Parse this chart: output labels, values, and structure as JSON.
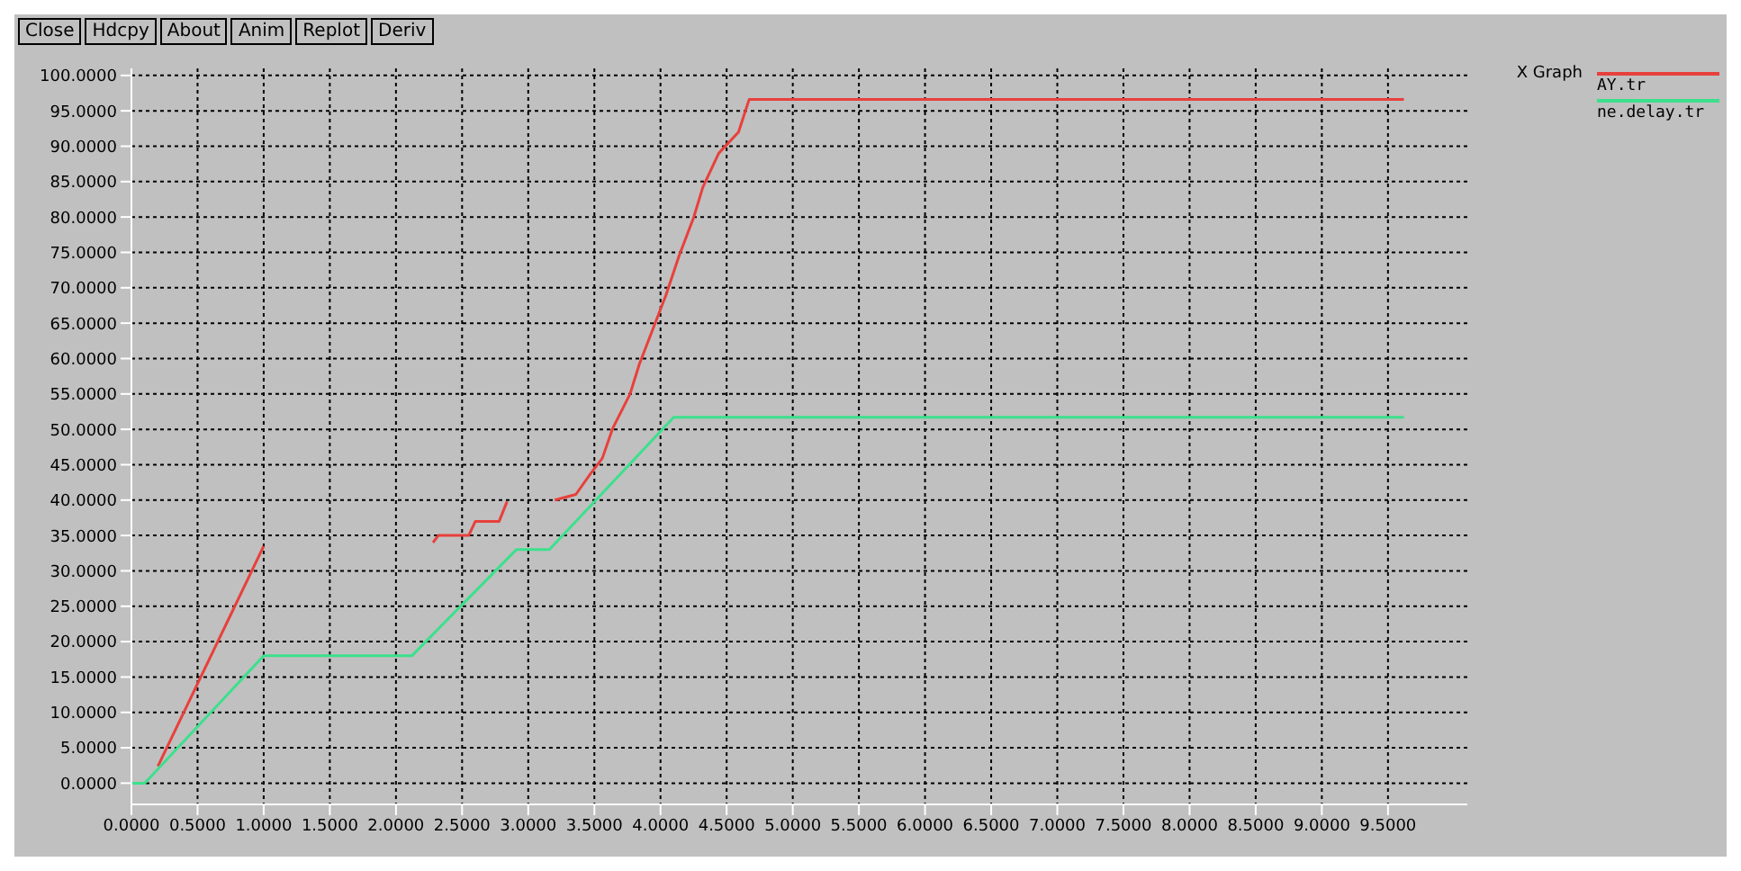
{
  "chart_data": {
    "type": "line",
    "title": "X Graph",
    "annotations": [
      "Close",
      "Hdcpy",
      "About",
      "Anim",
      "Replot",
      "Deriv"
    ],
    "xlim": [
      0,
      10.1
    ],
    "ylim": [
      -3,
      101
    ],
    "xticks": [
      {
        "value": 0,
        "label": "0.0000"
      },
      {
        "value": 0.5,
        "label": "0.5000"
      },
      {
        "value": 1,
        "label": "1.0000"
      },
      {
        "value": 1.5,
        "label": "1.5000"
      },
      {
        "value": 2,
        "label": "2.0000"
      },
      {
        "value": 2.5,
        "label": "2.5000"
      },
      {
        "value": 3,
        "label": "3.0000"
      },
      {
        "value": 3.5,
        "label": "3.5000"
      },
      {
        "value": 4,
        "label": "4.0000"
      },
      {
        "value": 4.5,
        "label": "4.5000"
      },
      {
        "value": 5,
        "label": "5.0000"
      },
      {
        "value": 5.5,
        "label": "5.5000"
      },
      {
        "value": 6,
        "label": "6.0000"
      },
      {
        "value": 6.5,
        "label": "6.5000"
      },
      {
        "value": 7,
        "label": "7.0000"
      },
      {
        "value": 7.5,
        "label": "7.5000"
      },
      {
        "value": 8,
        "label": "8.0000"
      },
      {
        "value": 8.5,
        "label": "8.5000"
      },
      {
        "value": 9,
        "label": "9.0000"
      },
      {
        "value": 9.5,
        "label": "9.5000"
      }
    ],
    "yticks": [
      {
        "value": 0,
        "label": "0.0000"
      },
      {
        "value": 5,
        "label": "5.0000"
      },
      {
        "value": 10,
        "label": "10.0000"
      },
      {
        "value": 15,
        "label": "15.0000"
      },
      {
        "value": 20,
        "label": "20.0000"
      },
      {
        "value": 25,
        "label": "25.0000"
      },
      {
        "value": 30,
        "label": "30.0000"
      },
      {
        "value": 35,
        "label": "35.0000"
      },
      {
        "value": 40,
        "label": "40.0000"
      },
      {
        "value": 45,
        "label": "45.0000"
      },
      {
        "value": 50,
        "label": "50.0000"
      },
      {
        "value": 55,
        "label": "55.0000"
      },
      {
        "value": 60,
        "label": "60.0000"
      },
      {
        "value": 65,
        "label": "65.0000"
      },
      {
        "value": 70,
        "label": "70.0000"
      },
      {
        "value": 75,
        "label": "75.0000"
      },
      {
        "value": 80,
        "label": "80.0000"
      },
      {
        "value": 85,
        "label": "85.0000"
      },
      {
        "value": 90,
        "label": "90.0000"
      },
      {
        "value": 95,
        "label": "95.0000"
      },
      {
        "value": 100,
        "label": "100.0000"
      }
    ],
    "grid": true,
    "legend": "top right",
    "marker": "none",
    "line_style": "solid",
    "series": [
      {
        "name": "AY.tr",
        "color": "#e8403c",
        "x": [
          0.2,
          1.0,
          1.01,
          2.28,
          2.32,
          2.55,
          2.6,
          2.78,
          2.84,
          2.9,
          3.2,
          3.36,
          3.47,
          3.56,
          3.64,
          3.77,
          3.84,
          4.04,
          4.14,
          4.25,
          4.32,
          4.44,
          4.59,
          4.67,
          9.62
        ],
        "values": [
          2.4,
          33.5,
          null,
          34,
          35,
          35,
          37,
          37,
          39.8,
          null,
          40,
          40.8,
          43.7,
          45.9,
          50.2,
          55,
          59.2,
          68.9,
          74.5,
          79.9,
          84.2,
          89,
          92,
          96.6,
          96.6
        ]
      },
      {
        "name": "ne.delay.tr",
        "color": "#3ce08c",
        "x": [
          0,
          0.1,
          1.0,
          2.12,
          2.91,
          3.16,
          4.1,
          9.62
        ],
        "values": [
          0,
          0,
          18,
          18,
          33,
          33,
          51.7,
          51.7
        ]
      }
    ]
  }
}
